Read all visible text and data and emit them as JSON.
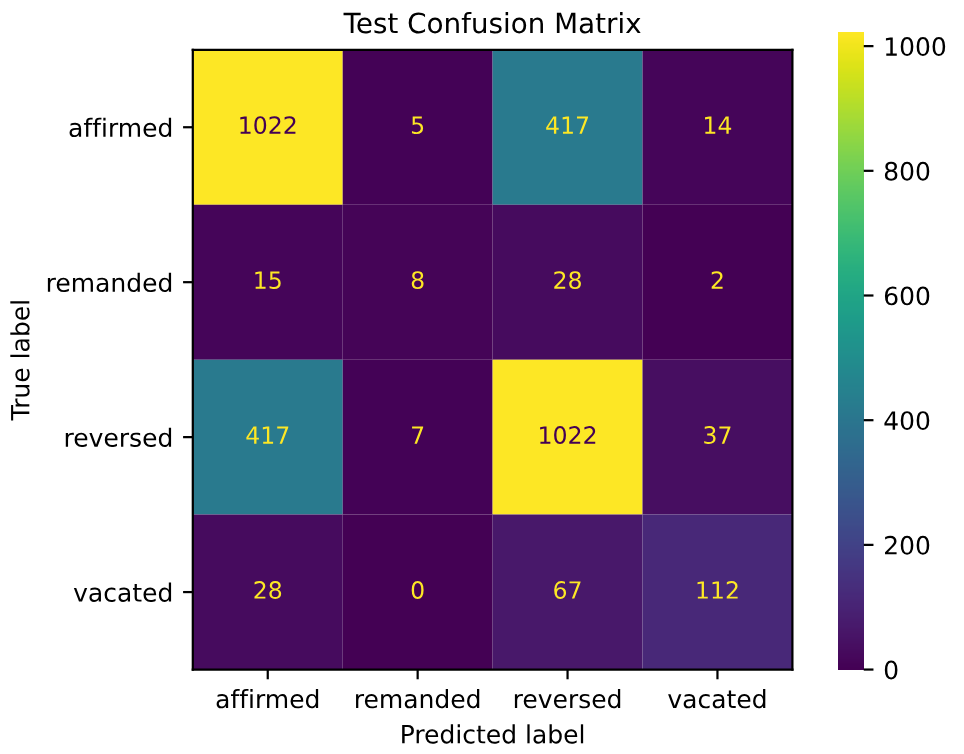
{
  "chart_data": {
    "type": "heatmap",
    "title": "Test Confusion Matrix",
    "xlabel": "Predicted label",
    "ylabel": "True label",
    "categories": [
      "affirmed",
      "remanded",
      "reversed",
      "vacated"
    ],
    "y_categories": [
      "affirmed",
      "remanded",
      "reversed",
      "vacated"
    ],
    "cells": [
      [
        1022,
        5,
        417,
        14
      ],
      [
        15,
        8,
        28,
        2
      ],
      [
        417,
        7,
        1022,
        37
      ],
      [
        28,
        0,
        67,
        112
      ]
    ],
    "clim": [
      0,
      1022
    ],
    "cticks": [
      0,
      200,
      400,
      600,
      800,
      1000
    ],
    "data_labels": true,
    "grid": false
  }
}
